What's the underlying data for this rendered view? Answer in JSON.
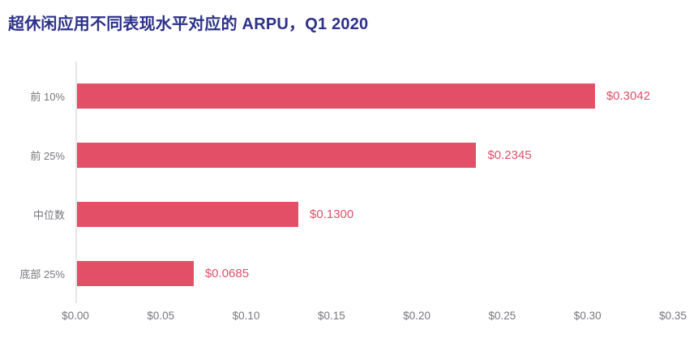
{
  "title": "超休闲应用不同表现水平对应的 ARPU，Q1 2020",
  "chart_data": {
    "type": "bar",
    "orientation": "horizontal",
    "title": "超休闲应用不同表现水平对应的 ARPU，Q1 2020",
    "categories": [
      "前 10%",
      "前 25%",
      "中位数",
      "底部 25%"
    ],
    "values": [
      0.3042,
      0.2345,
      0.13,
      0.0685
    ],
    "value_labels": [
      "$0.3042",
      "$0.2345",
      "$0.1300",
      "$0.0685"
    ],
    "x_tick_labels": [
      "$0.00",
      "$0.05",
      "$0.10",
      "$0.15",
      "$0.20",
      "$0.25",
      "$0.30",
      "$0.35"
    ],
    "xlabel": "",
    "ylabel": "",
    "xlim": [
      0,
      0.35
    ],
    "grid": false,
    "legend_position": "none",
    "colors": {
      "bar": "#e44f68",
      "value_label": "#e0506b",
      "title": "#2c3189",
      "axis_labels": "#76777d",
      "axis_line": "#e6e6ea",
      "background": "#ffffff"
    }
  }
}
